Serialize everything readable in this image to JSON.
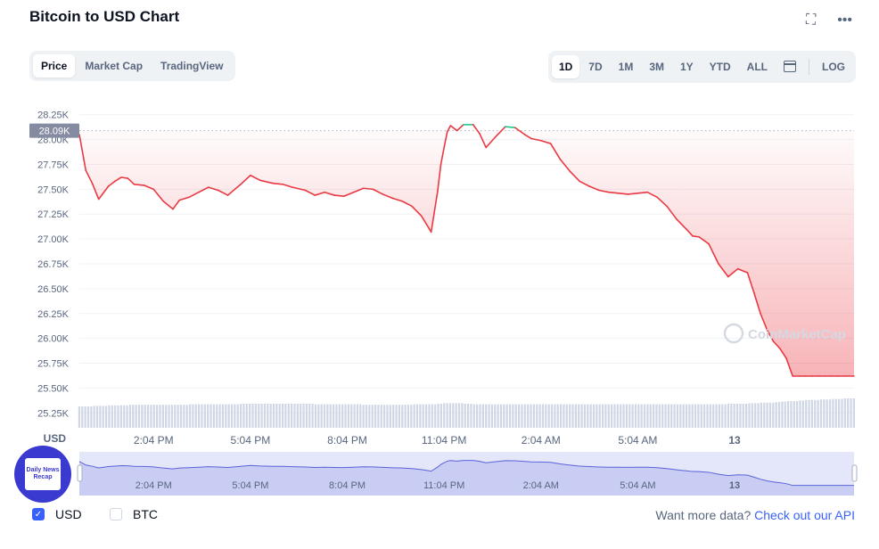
{
  "title": "Bitcoin to USD Chart",
  "toolbar": {
    "fullscreen_icon": "fullscreen-icon",
    "more_icon": "more-icon"
  },
  "view_tabs": [
    {
      "label": "Price",
      "active": true
    },
    {
      "label": "Market Cap",
      "active": false
    },
    {
      "label": "TradingView",
      "active": false
    }
  ],
  "range_tabs": [
    {
      "label": "1D",
      "active": true
    },
    {
      "label": "7D",
      "active": false
    },
    {
      "label": "1M",
      "active": false
    },
    {
      "label": "3M",
      "active": false
    },
    {
      "label": "1Y",
      "active": false
    },
    {
      "label": "YTD",
      "active": false
    },
    {
      "label": "ALL",
      "active": false
    }
  ],
  "log_label": "LOG",
  "watermark": "CoinMarketCap",
  "currency_options": [
    {
      "label": "USD",
      "checked": true
    },
    {
      "label": "BTC",
      "checked": false
    }
  ],
  "api_prompt": "Want more data?",
  "api_link": "Check out our API",
  "badge_text": "Daily News Recap",
  "colors": {
    "up": "#16c784",
    "down": "#ea3943",
    "accent": "#3861fb",
    "volume": "#cfd6e4"
  },
  "chart_data": {
    "type": "line",
    "y_unit_label": "USD",
    "ylim": [
      25100,
      28400
    ],
    "yticks": [
      "28.25K",
      "28.00K",
      "27.75K",
      "27.50K",
      "27.25K",
      "27.00K",
      "26.75K",
      "26.50K",
      "26.25K",
      "26.00K",
      "25.75K",
      "25.50K",
      "25.25K"
    ],
    "ytick_values": [
      28250,
      28000,
      27750,
      27500,
      27250,
      27000,
      26750,
      26500,
      26250,
      26000,
      25750,
      25500,
      25250
    ],
    "xticks": [
      {
        "label": "2:04 PM",
        "t": 2.3
      },
      {
        "label": "5:04 PM",
        "t": 5.3
      },
      {
        "label": "8:04 PM",
        "t": 8.3
      },
      {
        "label": "11:04 PM",
        "t": 11.3
      },
      {
        "label": "2:04 AM",
        "t": 14.3
      },
      {
        "label": "5:04 AM",
        "t": 17.3
      },
      {
        "label": "13",
        "t": 20.3
      }
    ],
    "xlim": [
      0,
      24
    ],
    "reference_price": 28090,
    "reference_label": "28.09K",
    "series": [
      {
        "t": [
          0,
          0.2,
          0.4,
          0.6,
          0.9,
          1.1,
          1.3,
          1.5,
          1.7,
          2.0,
          2.3,
          2.6,
          2.9,
          3.1,
          3.4,
          3.7,
          4.0,
          4.3,
          4.6,
          5.0,
          5.3,
          5.6,
          6.0,
          6.3,
          6.6,
          7.0,
          7.3,
          7.6,
          7.9,
          8.2,
          8.5,
          8.8,
          9.1,
          9.4,
          9.7,
          10.0,
          10.3,
          10.6,
          10.9,
          11.1,
          11.2,
          11.3,
          11.4,
          11.5,
          11.7,
          11.9,
          12.2,
          12.4,
          12.6,
          12.9,
          13.2,
          13.5,
          13.8,
          14.0,
          14.3,
          14.6,
          14.9,
          15.2,
          15.5,
          15.8,
          16.1,
          16.4,
          16.7,
          17.0,
          17.3,
          17.6,
          17.9,
          18.2,
          18.5,
          18.8,
          19.0,
          19.2,
          19.5,
          19.8,
          20.1,
          20.4,
          20.7,
          20.9,
          21.1,
          21.3,
          21.5,
          21.7,
          21.9,
          22.1,
          22.3,
          22.5,
          22.7,
          22.9,
          23.1,
          23.3,
          23.5,
          23.7,
          24.0
        ],
        "price": [
          28050,
          27690,
          27560,
          27400,
          27530,
          27580,
          27620,
          27610,
          27550,
          27540,
          27500,
          27380,
          27300,
          27390,
          27420,
          27470,
          27520,
          27490,
          27440,
          27550,
          27640,
          27590,
          27560,
          27550,
          27520,
          27490,
          27440,
          27470,
          27440,
          27430,
          27470,
          27510,
          27500,
          27450,
          27410,
          27380,
          27330,
          27230,
          27070,
          27480,
          27750,
          27920,
          28080,
          28140,
          28090,
          28150,
          28150,
          28060,
          27920,
          28030,
          28130,
          28120,
          28050,
          28010,
          27990,
          27960,
          27800,
          27680,
          27580,
          27530,
          27490,
          27470,
          27460,
          27450,
          27460,
          27470,
          27420,
          27330,
          27200,
          27100,
          27030,
          27020,
          26950,
          26750,
          26620,
          26700,
          26660,
          26460,
          26250,
          26090,
          25970,
          25900,
          25800,
          25620,
          25620,
          25620,
          25620,
          25620,
          25620,
          25620,
          25620,
          25620,
          25620
        ],
        "volume": [
          40,
          40,
          41,
          41,
          42,
          42,
          42,
          43,
          43,
          43,
          43,
          43,
          43,
          43,
          44,
          44,
          44,
          44,
          44,
          45,
          45,
          45,
          45,
          45,
          45,
          45,
          44,
          44,
          44,
          44,
          44,
          43,
          43,
          43,
          43,
          43,
          44,
          44,
          44,
          45,
          45,
          46,
          46,
          46,
          46,
          45,
          44,
          44,
          44,
          44,
          44,
          44,
          44,
          44,
          44,
          44,
          44,
          44,
          44,
          44,
          44,
          44,
          44,
          44,
          44,
          44,
          44,
          44,
          44,
          44,
          44,
          44,
          44,
          44,
          45,
          45,
          46,
          46,
          47,
          47,
          48,
          49,
          50,
          50,
          51,
          52,
          52,
          53,
          53,
          54,
          54,
          55,
          55
        ]
      }
    ]
  }
}
